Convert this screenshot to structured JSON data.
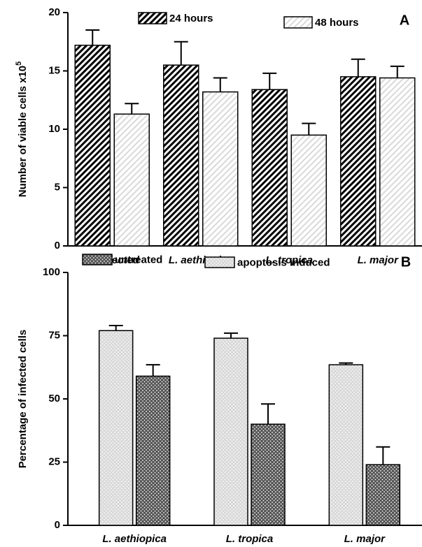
{
  "chart_data": [
    {
      "type": "bar",
      "ylabel": "Number of viable cells x10",
      "ylabel_exponent": "5",
      "annotation": "A",
      "categories": [
        "Uninfected",
        "L. aethiopica",
        "L. tropica",
        "L. major"
      ],
      "series": [
        {
          "name": "24 hours",
          "color": "#000000",
          "pattern": "hatch",
          "values": [
            17.2,
            15.5,
            13.4,
            14.5
          ],
          "errors": [
            1.3,
            2.0,
            1.4,
            1.5
          ]
        },
        {
          "name": "48 hours",
          "color": "#d9d9d9",
          "pattern": "hatch",
          "values": [
            11.3,
            13.2,
            9.5,
            14.4
          ],
          "errors": [
            0.9,
            1.2,
            1.0,
            1.0
          ]
        }
      ],
      "ylim": [
        0,
        20
      ],
      "yticks": [
        0,
        5,
        10,
        15,
        20
      ]
    },
    {
      "type": "bar",
      "ylabel": "Percentage of infected cells",
      "annotation": "B",
      "categories": [
        "L. aethiopica",
        "L. tropica",
        "L. major"
      ],
      "series": [
        {
          "name": "apoptosis induced",
          "color": "#d9d9d9",
          "pattern": "dots",
          "values": [
            77,
            74,
            63.5
          ],
          "errors": [
            2,
            2,
            0.7
          ]
        },
        {
          "name": "untreated",
          "color": "#555555",
          "pattern": "dots",
          "values": [
            59,
            40,
            24
          ],
          "errors": [
            4.5,
            8,
            7
          ]
        }
      ],
      "ylim": [
        0,
        100
      ],
      "yticks": [
        0,
        25,
        50,
        75,
        100
      ]
    }
  ]
}
